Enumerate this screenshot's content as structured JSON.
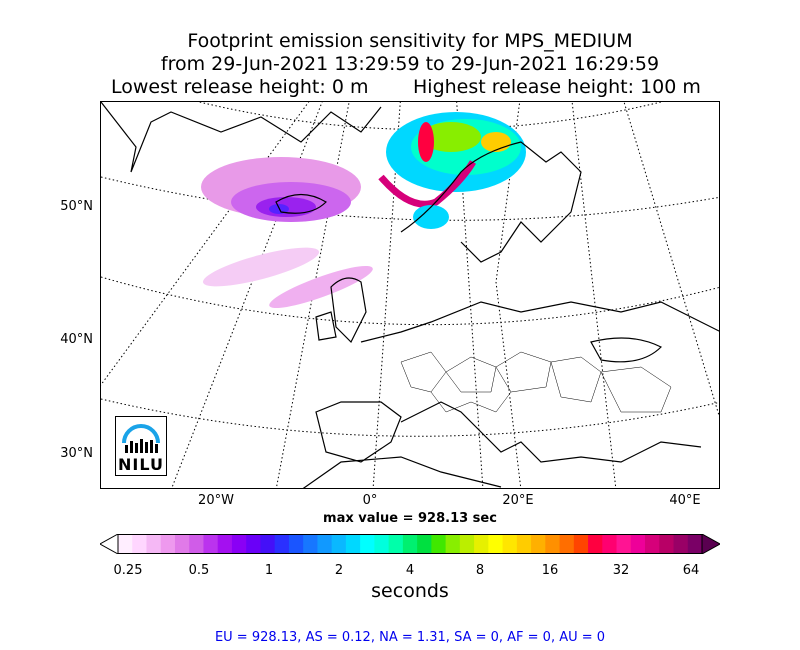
{
  "title": {
    "line1": "Footprint emission sensitivity for MPS_MEDIUM",
    "line2": "from 29-Jun-2021 13:29:59 to 29-Jun-2021 16:29:59",
    "lowest": "Lowest release height: 0 m",
    "highest": "Highest release height: 100 m"
  },
  "map": {
    "lat_labels": [
      "50°N",
      "40°N",
      "30°N"
    ],
    "lon_labels": [
      "20°W",
      "0°",
      "20°E",
      "40°E"
    ],
    "logo_text": "NILU",
    "max_value_text": "max value = 928.13 sec"
  },
  "colorbar": {
    "ticks": [
      "0.25",
      "0.5",
      "1",
      "2",
      "4",
      "8",
      "16",
      "32",
      "64"
    ],
    "label": "seconds",
    "colors": [
      "#ffeeff",
      "#ffd6ff",
      "#f5b8f5",
      "#ee99ee",
      "#e07ae8",
      "#d05ce8",
      "#bb33ee",
      "#a410f0",
      "#8a00f5",
      "#6a00f8",
      "#4410f8",
      "#2a30ff",
      "#1a55ff",
      "#1777ff",
      "#1199ff",
      "#0ab8ff",
      "#00d8ff",
      "#00ffff",
      "#00ffdd",
      "#00ffaa",
      "#00f070",
      "#00e040",
      "#40e800",
      "#88ee00",
      "#bbee00",
      "#e6f000",
      "#ffff00",
      "#ffe600",
      "#ffcc00",
      "#ffb000",
      "#ff9000",
      "#ff6e00",
      "#ff4400",
      "#ff0040",
      "#ff0070",
      "#ff1493",
      "#ee0099",
      "#d6007a",
      "#b80066",
      "#990066",
      "#7a0066"
    ]
  },
  "regions_text": "EU = 928.13,  AS = 0.12,  NA = 1.31,  SA = 0,  AF = 0,  AU = 0"
}
